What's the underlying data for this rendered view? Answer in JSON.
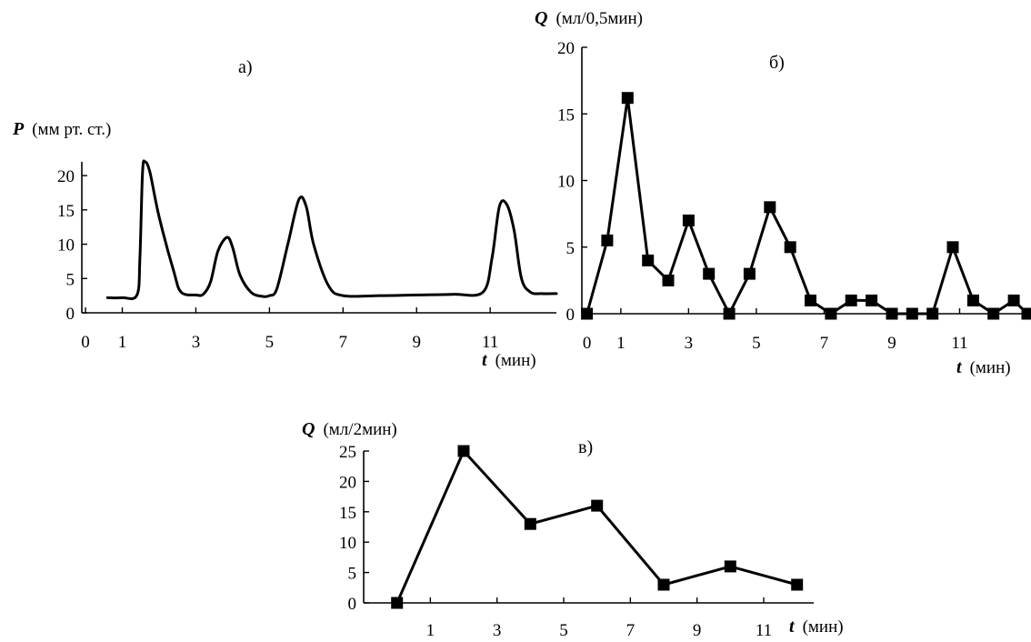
{
  "chart_data": [
    {
      "id": "a",
      "type": "line",
      "panel_label": "а)",
      "ylabel_symbol": "P",
      "ylabel": "(мм рт. ст.)",
      "xlabel_symbol": "t",
      "xlabel": "(мин)",
      "xlim": [
        -0.1,
        12.8
      ],
      "ylim": [
        0,
        22
      ],
      "xticks": [
        0,
        1,
        3,
        5,
        7,
        9,
        11
      ],
      "yticks": [
        0,
        5,
        10,
        15,
        20
      ],
      "markers": false,
      "series": [
        {
          "x": [
            0.6,
            1.0,
            1.4,
            1.48,
            1.55,
            1.62,
            1.75,
            2.0,
            2.4,
            2.6,
            3.0,
            3.2,
            3.4,
            3.6,
            3.85,
            4.0,
            4.2,
            4.5,
            4.8,
            5.0,
            5.2,
            5.5,
            5.8,
            6.0,
            6.2,
            6.6,
            7.0,
            8.0,
            9.0,
            10.0,
            10.8,
            11.05,
            11.25,
            11.45,
            11.65,
            11.85,
            12.1,
            12.4,
            12.8
          ],
          "y": [
            2.2,
            2.2,
            2.6,
            8.0,
            20.5,
            22.0,
            20.5,
            14.0,
            6.0,
            3.0,
            2.6,
            2.7,
            4.5,
            9.0,
            11.0,
            9.5,
            5.5,
            3.0,
            2.4,
            2.5,
            3.5,
            10.0,
            16.5,
            15.5,
            10.0,
            4.0,
            2.5,
            2.5,
            2.6,
            2.7,
            3.0,
            8.0,
            15.5,
            15.8,
            12.0,
            5.0,
            3.0,
            2.8,
            2.8
          ]
        }
      ]
    },
    {
      "id": "b",
      "type": "line",
      "panel_label": "б)",
      "ylabel_symbol": "Q",
      "ylabel": "(мл/0,5мин)",
      "xlabel_symbol": "t",
      "xlabel": "(мин)",
      "xlim": [
        -0.15,
        13.0
      ],
      "ylim": [
        0,
        20
      ],
      "xticks": [
        0,
        1,
        3,
        5,
        7,
        9,
        11
      ],
      "yticks": [
        0,
        5,
        10,
        15,
        20
      ],
      "markers": true,
      "series": [
        {
          "x": [
            0,
            0.6,
            1.2,
            1.8,
            2.4,
            3.0,
            3.6,
            4.2,
            4.8,
            5.4,
            6.0,
            6.6,
            7.2,
            7.8,
            8.4,
            9.0,
            9.6,
            10.2,
            10.8,
            11.4,
            12.0,
            12.6
          ],
          "y": [
            0,
            5.5,
            16.2,
            4.0,
            2.5,
            7.0,
            3.0,
            0,
            3.0,
            8.0,
            5.0,
            1.0,
            0,
            1.0,
            1.0,
            0,
            0,
            0,
            5.0,
            1.0,
            0,
            1.0
          ]
        }
      ],
      "tail_point": [
        13.0,
        0
      ]
    },
    {
      "id": "v",
      "type": "line",
      "panel_label": "в)",
      "ylabel_symbol": "Q",
      "ylabel": "(мл/2мин)",
      "xlabel_symbol": "t",
      "xlabel": "(мин)",
      "xlim": [
        -1.0,
        12.5
      ],
      "ylim": [
        0,
        25
      ],
      "xticks": [
        1,
        3,
        5,
        7,
        9,
        11
      ],
      "yticks": [
        0,
        5,
        10,
        15,
        20,
        25
      ],
      "markers": true,
      "series": [
        {
          "x": [
            0,
            2,
            4,
            6,
            8,
            10,
            12
          ],
          "y": [
            0,
            25,
            13,
            16,
            3,
            6,
            3
          ]
        }
      ]
    }
  ]
}
